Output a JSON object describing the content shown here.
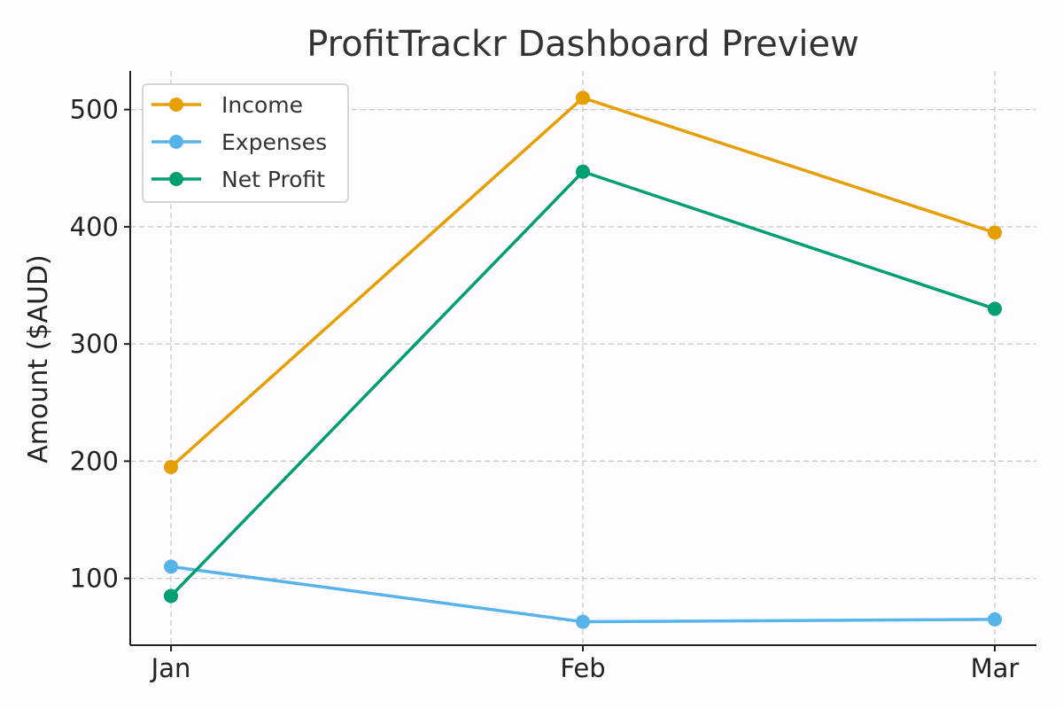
{
  "chart_data": {
    "type": "line",
    "title": "ProfitTrackr Dashboard Preview",
    "xlabel": "",
    "ylabel": "Amount ($AUD)",
    "categories": [
      "Jan",
      "Feb",
      "Mar"
    ],
    "ylim": [
      43,
      533
    ],
    "yticks": [
      100,
      200,
      300,
      400,
      500
    ],
    "grid": true,
    "legend_position": "upper-left",
    "series": [
      {
        "name": "Income",
        "color": "#E69F00",
        "values": [
          195,
          510,
          395
        ]
      },
      {
        "name": "Expenses",
        "color": "#56B4E9",
        "values": [
          110,
          63,
          65
        ]
      },
      {
        "name": "Net Profit",
        "color": "#009E73",
        "values": [
          85,
          447,
          330
        ]
      }
    ]
  }
}
